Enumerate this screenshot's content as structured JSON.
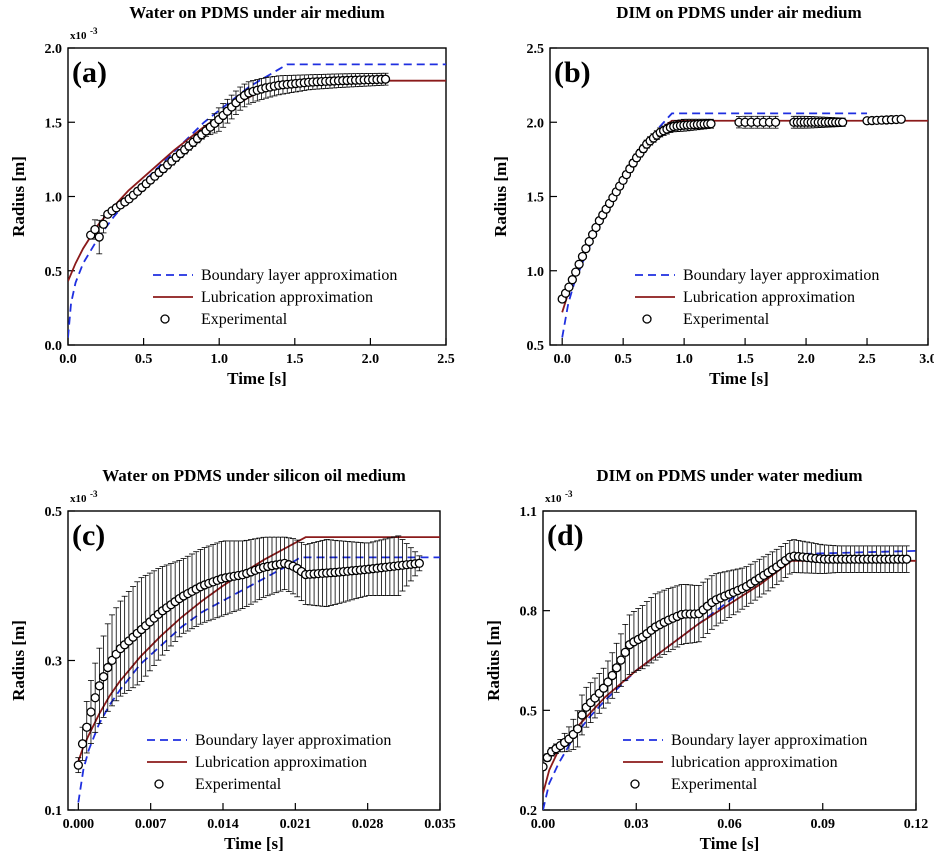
{
  "colors": {
    "boundary": "#1f2fe0",
    "lubrication": "#8b1a1a",
    "experimental": "#000000"
  },
  "chart_data": [
    {
      "id": "a",
      "type": "line",
      "title": "Water on PDMS under air medium",
      "panel_label": "(a)",
      "xlabel": "Time [s]",
      "ylabel": "Radius [m]",
      "multiplier": "x10",
      "multiplier_exp": "-3",
      "xlim": [
        0,
        2.5
      ],
      "ylim": [
        0,
        2.0
      ],
      "xticks": [
        0.0,
        0.5,
        1.0,
        1.5,
        2.0,
        2.5
      ],
      "yticks": [
        0.0,
        0.5,
        1.0,
        1.5,
        2.0
      ],
      "xtick_labels": [
        "0.0",
        "0.5",
        "1.0",
        "1.5",
        "2.0",
        "2.5"
      ],
      "ytick_labels": [
        "0.0",
        "0.5",
        "1.0",
        "1.5",
        "2.0"
      ],
      "legend": {
        "position": "bottom-right",
        "entries": [
          "Boundary layer approximation",
          "Lubrication approximation",
          "Experimental"
        ]
      },
      "series": [
        {
          "name": "Boundary layer approximation",
          "style": "dashed",
          "x": [
            0,
            0.02,
            0.05,
            0.1,
            0.2,
            0.3,
            0.4,
            0.5,
            0.6,
            0.7,
            0.8,
            0.9,
            1.0,
            1.1,
            1.2,
            1.3,
            1.4,
            1.45,
            2.5
          ],
          "y": [
            0.05,
            0.28,
            0.42,
            0.55,
            0.72,
            0.86,
            0.98,
            1.1,
            1.2,
            1.3,
            1.4,
            1.5,
            1.58,
            1.66,
            1.74,
            1.8,
            1.86,
            1.89,
            1.89
          ]
        },
        {
          "name": "Lubrication approximation",
          "style": "solid",
          "x": [
            0,
            0.05,
            0.1,
            0.2,
            0.3,
            0.4,
            0.5,
            0.6,
            0.7,
            0.8,
            0.9,
            1.0,
            1.1,
            1.2,
            1.3,
            1.4,
            1.5,
            2.5
          ],
          "y": [
            0.43,
            0.55,
            0.65,
            0.81,
            0.93,
            1.04,
            1.13,
            1.22,
            1.31,
            1.39,
            1.47,
            1.54,
            1.61,
            1.67,
            1.72,
            1.76,
            1.78,
            1.78
          ]
        },
        {
          "name": "Experimental",
          "style": "markers",
          "x_start": 0.15,
          "x_end": 2.1,
          "n": 70,
          "shape": [
            [
              0.15,
              0.74
            ],
            [
              0.18,
              0.78
            ],
            [
              0.21,
              0.72
            ],
            [
              0.25,
              0.87
            ],
            [
              0.3,
              0.91
            ],
            [
              0.4,
              0.98
            ],
            [
              0.5,
              1.07
            ],
            [
              0.6,
              1.16
            ],
            [
              0.7,
              1.25
            ],
            [
              0.8,
              1.34
            ],
            [
              0.9,
              1.43
            ],
            [
              1.0,
              1.52
            ],
            [
              1.1,
              1.62
            ],
            [
              1.15,
              1.67
            ],
            [
              1.2,
              1.7
            ],
            [
              1.3,
              1.73
            ],
            [
              1.4,
              1.75
            ],
            [
              1.6,
              1.77
            ],
            [
              1.8,
              1.78
            ],
            [
              2.1,
              1.79
            ]
          ],
          "err": [
            [
              0.15,
              0.02
            ],
            [
              0.2,
              0.1
            ],
            [
              0.21,
              0.12
            ],
            [
              0.25,
              0.02
            ],
            [
              0.9,
              0.03
            ],
            [
              1.0,
              0.08
            ],
            [
              1.1,
              0.08
            ],
            [
              1.3,
              0.07
            ],
            [
              1.6,
              0.05
            ],
            [
              2.1,
              0.04
            ]
          ]
        }
      ]
    },
    {
      "id": "b",
      "type": "line",
      "title": "DIM on PDMS under air medium",
      "panel_label": "(b)",
      "xlabel": "Time [s]",
      "ylabel": "Radius [m]",
      "multiplier": "",
      "multiplier_exp": "",
      "xlim": [
        -0.1,
        3.0
      ],
      "ylim": [
        0.5,
        2.5
      ],
      "xticks": [
        0.0,
        0.5,
        1.0,
        1.5,
        2.0,
        2.5,
        3.0
      ],
      "yticks": [
        0.5,
        1.0,
        1.5,
        2.0,
        2.5
      ],
      "xtick_labels": [
        "0.0",
        "0.5",
        "1.0",
        "1.5",
        "2.0",
        "2.5",
        "3.0"
      ],
      "ytick_labels": [
        "0.5",
        "1.0",
        "1.5",
        "2.0",
        "2.5"
      ],
      "legend": {
        "position": "bottom-right",
        "entries": [
          "Boundary layer approximation",
          "Lubrication approximation",
          "Experimental"
        ]
      },
      "series": [
        {
          "name": "Boundary layer approximation",
          "style": "dashed",
          "x": [
            0,
            0.05,
            0.1,
            0.2,
            0.3,
            0.4,
            0.5,
            0.6,
            0.7,
            0.8,
            0.9,
            2.5
          ],
          "y": [
            0.55,
            0.78,
            0.92,
            1.12,
            1.3,
            1.46,
            1.6,
            1.74,
            1.86,
            1.97,
            2.06,
            2.06
          ]
        },
        {
          "name": "Lubrication approximation",
          "style": "solid",
          "x": [
            0,
            0.05,
            0.1,
            0.2,
            0.3,
            0.4,
            0.5,
            0.6,
            0.7,
            0.8,
            0.9,
            3.0
          ],
          "y": [
            0.72,
            0.85,
            0.96,
            1.16,
            1.33,
            1.48,
            1.62,
            1.75,
            1.86,
            1.95,
            2.01,
            2.01
          ]
        },
        {
          "name": "Experimental",
          "style": "markers",
          "segments": [
            {
              "x_start": 0.0,
              "x_end": 1.22,
              "n": 45,
              "shape": [
                [
                  0.0,
                  0.81
                ],
                [
                  0.05,
                  0.88
                ],
                [
                  0.1,
                  0.97
                ],
                [
                  0.2,
                  1.16
                ],
                [
                  0.3,
                  1.33
                ],
                [
                  0.4,
                  1.47
                ],
                [
                  0.5,
                  1.61
                ],
                [
                  0.6,
                  1.75
                ],
                [
                  0.7,
                  1.86
                ],
                [
                  0.8,
                  1.93
                ],
                [
                  0.9,
                  1.97
                ],
                [
                  1.0,
                  1.98
                ],
                [
                  1.22,
                  1.99
                ]
              ]
            },
            {
              "x_start": 1.45,
              "x_end": 1.75,
              "n": 7,
              "shape": [
                [
                  1.45,
                  2.0
                ],
                [
                  1.75,
                  2.0
                ]
              ]
            },
            {
              "x_start": 1.9,
              "x_end": 2.3,
              "n": 15,
              "shape": [
                [
                  1.9,
                  2.0
                ],
                [
                  2.3,
                  2.0
                ]
              ]
            },
            {
              "x_start": 2.5,
              "x_end": 2.78,
              "n": 8,
              "shape": [
                [
                  2.5,
                  2.01
                ],
                [
                  2.78,
                  2.02
                ]
              ]
            }
          ],
          "err": [
            [
              0.0,
              0.01
            ],
            [
              0.8,
              0.03
            ],
            [
              1.0,
              0.04
            ],
            [
              1.22,
              0.03
            ],
            [
              1.5,
              0.04
            ],
            [
              2.0,
              0.04
            ],
            [
              2.5,
              0.02
            ],
            [
              2.78,
              0.01
            ]
          ]
        }
      ]
    },
    {
      "id": "c",
      "type": "line",
      "title": "Water on PDMS under silicon oil medium",
      "panel_label": "(c)",
      "xlabel": "Time [s]",
      "ylabel": "Radius [m]",
      "multiplier": "x10",
      "multiplier_exp": "-3",
      "xlim": [
        -0.001,
        0.035
      ],
      "ylim": [
        0.1,
        0.5
      ],
      "xticks": [
        0.0,
        0.007,
        0.014,
        0.021,
        0.028,
        0.035
      ],
      "yticks": [
        0.1,
        0.3,
        0.5
      ],
      "xtick_labels": [
        "0.000",
        "0.007",
        "0.014",
        "0.021",
        "0.028",
        "0.035"
      ],
      "ytick_labels": [
        "0.1",
        "0.3",
        "0.5"
      ],
      "legend": {
        "position": "bottom-right",
        "entries": [
          "Boundary layer approximation",
          "Lubrication approximation",
          " Experimental"
        ]
      },
      "series": [
        {
          "name": "Boundary layer approximation",
          "style": "dashed",
          "x": [
            0,
            0.0005,
            0.001,
            0.002,
            0.003,
            0.004,
            0.006,
            0.008,
            0.01,
            0.012,
            0.014,
            0.016,
            0.018,
            0.02,
            0.0215,
            0.035
          ],
          "y": [
            0.11,
            0.155,
            0.18,
            0.215,
            0.24,
            0.26,
            0.295,
            0.32,
            0.345,
            0.365,
            0.38,
            0.395,
            0.41,
            0.425,
            0.438,
            0.438
          ]
        },
        {
          "name": "Lubrication approximation",
          "style": "solid",
          "x": [
            0,
            0.0005,
            0.001,
            0.002,
            0.003,
            0.004,
            0.006,
            0.008,
            0.01,
            0.012,
            0.014,
            0.016,
            0.018,
            0.02,
            0.022,
            0.035
          ],
          "y": [
            0.165,
            0.185,
            0.2,
            0.228,
            0.252,
            0.272,
            0.305,
            0.333,
            0.358,
            0.38,
            0.4,
            0.418,
            0.435,
            0.45,
            0.465,
            0.465
          ]
        },
        {
          "name": "Experimental",
          "style": "markers",
          "x_start": 0.0,
          "x_end": 0.033,
          "n": 82,
          "shape": [
            [
              0.0,
              0.16
            ],
            [
              0.0005,
              0.195
            ],
            [
              0.001,
              0.22
            ],
            [
              0.0015,
              0.245
            ],
            [
              0.002,
              0.265
            ],
            [
              0.003,
              0.295
            ],
            [
              0.004,
              0.315
            ],
            [
              0.006,
              0.34
            ],
            [
              0.008,
              0.365
            ],
            [
              0.01,
              0.385
            ],
            [
              0.012,
              0.4
            ],
            [
              0.014,
              0.41
            ],
            [
              0.016,
              0.415
            ],
            [
              0.018,
              0.425
            ],
            [
              0.02,
              0.43
            ],
            [
              0.021,
              0.425
            ],
            [
              0.022,
              0.415
            ],
            [
              0.025,
              0.418
            ],
            [
              0.028,
              0.422
            ],
            [
              0.033,
              0.43
            ]
          ],
          "err": [
            [
              0.0,
              0.01
            ],
            [
              0.001,
              0.04
            ],
            [
              0.003,
              0.06
            ],
            [
              0.006,
              0.07
            ],
            [
              0.01,
              0.05
            ],
            [
              0.014,
              0.05
            ],
            [
              0.02,
              0.035
            ],
            [
              0.024,
              0.045
            ],
            [
              0.028,
              0.035
            ],
            [
              0.031,
              0.04
            ],
            [
              0.033,
              0.01
            ]
          ]
        }
      ]
    },
    {
      "id": "d",
      "type": "line",
      "title": "DIM on PDMS under water medium",
      "panel_label": "(d)",
      "xlabel": "Time [s]",
      "ylabel": "Radius [m]",
      "multiplier": "x10",
      "multiplier_exp": "-3",
      "xlim": [
        0,
        0.12
      ],
      "ylim": [
        0.2,
        1.1
      ],
      "xticks": [
        0.0,
        0.03,
        0.06,
        0.09,
        0.12
      ],
      "yticks": [
        0.2,
        0.5,
        0.8,
        1.1
      ],
      "xtick_labels": [
        "0.00",
        "0.03",
        "0.06",
        "0.09",
        "0.12"
      ],
      "ytick_labels": [
        "0.2",
        "0.5",
        "0.8",
        "1.1"
      ],
      "legend": {
        "position": "bottom-right",
        "entries": [
          "Boundary layer approximation",
          "lubrication approximation",
          "Experimental"
        ]
      },
      "series": [
        {
          "name": "Boundary layer approximation",
          "style": "dashed",
          "x": [
            0,
            0.002,
            0.005,
            0.01,
            0.015,
            0.02,
            0.03,
            0.04,
            0.05,
            0.06,
            0.07,
            0.08,
            0.12
          ],
          "y": [
            0.2,
            0.28,
            0.34,
            0.42,
            0.48,
            0.53,
            0.62,
            0.69,
            0.76,
            0.83,
            0.9,
            0.97,
            0.98
          ]
        },
        {
          "name": "lubrication approximation",
          "style": "solid",
          "x": [
            0,
            0.002,
            0.005,
            0.01,
            0.015,
            0.02,
            0.03,
            0.04,
            0.05,
            0.06,
            0.07,
            0.08,
            0.12
          ],
          "y": [
            0.25,
            0.32,
            0.38,
            0.44,
            0.49,
            0.54,
            0.62,
            0.69,
            0.76,
            0.82,
            0.88,
            0.95,
            0.95
          ]
        },
        {
          "name": "Experimental",
          "style": "markers",
          "x_start": 0.0,
          "x_end": 0.117,
          "n": 85,
          "shape": [
            [
              0.0,
              0.33
            ],
            [
              0.002,
              0.37
            ],
            [
              0.005,
              0.39
            ],
            [
              0.008,
              0.41
            ],
            [
              0.011,
              0.44
            ],
            [
              0.013,
              0.5
            ],
            [
              0.016,
              0.53
            ],
            [
              0.019,
              0.56
            ],
            [
              0.022,
              0.6
            ],
            [
              0.025,
              0.65
            ],
            [
              0.028,
              0.7
            ],
            [
              0.032,
              0.72
            ],
            [
              0.036,
              0.75
            ],
            [
              0.04,
              0.77
            ],
            [
              0.045,
              0.79
            ],
            [
              0.05,
              0.79
            ],
            [
              0.055,
              0.83
            ],
            [
              0.06,
              0.85
            ],
            [
              0.065,
              0.87
            ],
            [
              0.07,
              0.9
            ],
            [
              0.075,
              0.93
            ],
            [
              0.08,
              0.965
            ],
            [
              0.085,
              0.96
            ],
            [
              0.09,
              0.955
            ],
            [
              0.1,
              0.955
            ],
            [
              0.117,
              0.955
            ]
          ],
          "err": [
            [
              0.0,
              0.01
            ],
            [
              0.005,
              0.015
            ],
            [
              0.012,
              0.06
            ],
            [
              0.02,
              0.06
            ],
            [
              0.028,
              0.09
            ],
            [
              0.036,
              0.1
            ],
            [
              0.045,
              0.09
            ],
            [
              0.055,
              0.08
            ],
            [
              0.065,
              0.06
            ],
            [
              0.08,
              0.05
            ],
            [
              0.095,
              0.04
            ],
            [
              0.117,
              0.04
            ]
          ]
        }
      ]
    }
  ]
}
